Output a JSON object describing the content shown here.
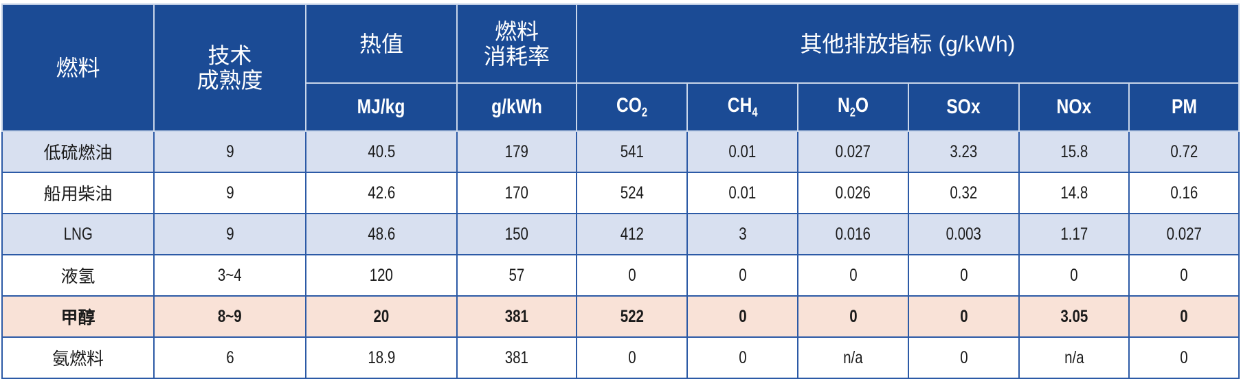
{
  "header": {
    "fuel": "燃料",
    "maturity_line1": "技术",
    "maturity_line2": "成熟度",
    "heat_value": "热值",
    "consumption_line1": "燃料",
    "consumption_line2": "消耗率",
    "emissions": "其他排放指标 (g/kWh)",
    "heat_unit": "MJ/kg",
    "consumption_unit": "g/kWh",
    "co2": {
      "base": "CO",
      "sub": "2"
    },
    "ch4": {
      "base": "CH",
      "sub": "4"
    },
    "n2o": {
      "base": "N",
      "sub": "2",
      "tail": "O"
    },
    "sox": "SOx",
    "nox": "NOx",
    "pm": "PM"
  },
  "rows": [
    {
      "style": "shade",
      "cells": [
        "低硫燃油",
        "9",
        "40.5",
        "179",
        "541",
        "0.01",
        "0.027",
        "3.23",
        "15.8",
        "0.72"
      ]
    },
    {
      "style": "white",
      "cells": [
        "船用柴油",
        "9",
        "42.6",
        "170",
        "524",
        "0.01",
        "0.026",
        "0.32",
        "14.8",
        "0.16"
      ]
    },
    {
      "style": "shade",
      "cells": [
        "LNG",
        "9",
        "48.6",
        "150",
        "412",
        "3",
        "0.016",
        "0.003",
        "1.17",
        "0.027"
      ]
    },
    {
      "style": "white",
      "cells": [
        "液氢",
        "3~4",
        "120",
        "57",
        "0",
        "0",
        "0",
        "0",
        "0",
        "0"
      ]
    },
    {
      "style": "hl",
      "cells": [
        "甲醇",
        "8~9",
        "20",
        "381",
        "522",
        "0",
        "0",
        "0",
        "3.05",
        "0"
      ]
    },
    {
      "style": "white",
      "cells": [
        "氨燃料",
        "6",
        "18.9",
        "381",
        "0",
        "0",
        "n/a",
        "0",
        "n/a",
        "0"
      ]
    }
  ],
  "colors": {
    "header_bg": "#1b4b95",
    "shade_row": "#d8e0f0",
    "highlight_row": "#f9e2d7",
    "border": "#2c5aa6"
  }
}
